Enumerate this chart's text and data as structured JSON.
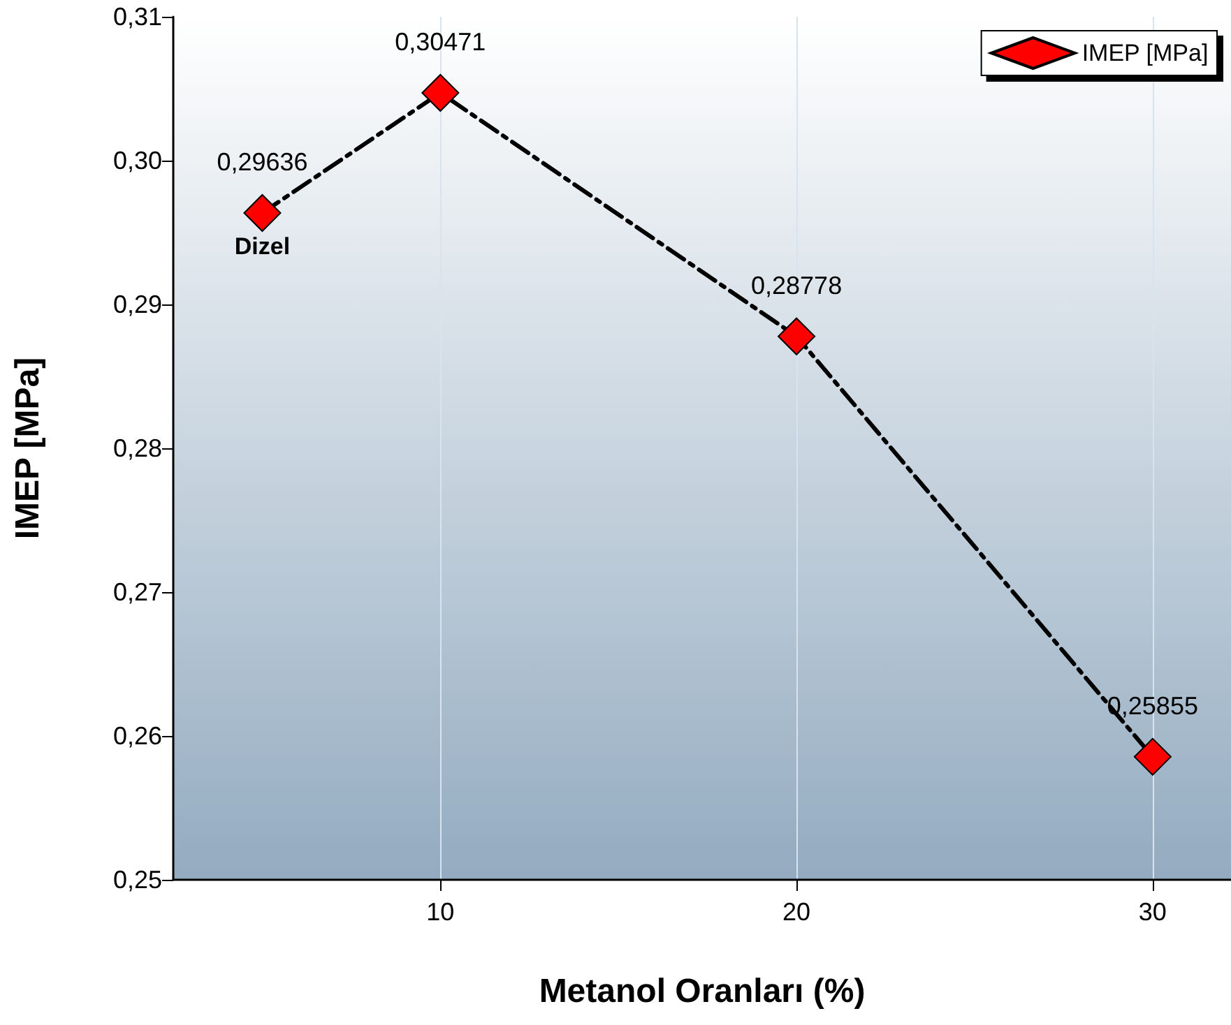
{
  "chart_data": {
    "type": "line",
    "xlabel": "Metanol Oranları (%)",
    "ylabel": "IMEP [MPa]",
    "x": [
      5,
      10,
      20,
      30
    ],
    "series": [
      {
        "name": "IMEP [MPa]",
        "color": "#ff0000",
        "values": [
          0.29636,
          0.30471,
          0.28778,
          0.25855
        ],
        "value_labels": [
          "0,29636",
          "0,30471",
          "0,28778",
          "0,25855"
        ]
      }
    ],
    "xlim": [
      2.5,
      32.2
    ],
    "xticks": [
      10,
      20,
      30
    ],
    "ylim": [
      0.25,
      0.31
    ],
    "yticks": [
      {
        "value": 0.25,
        "label": "0,25"
      },
      {
        "value": 0.26,
        "label": "0,26"
      },
      {
        "value": 0.27,
        "label": "0,27"
      },
      {
        "value": 0.28,
        "label": "0,28"
      },
      {
        "value": 0.29,
        "label": "0,29"
      },
      {
        "value": 0.3,
        "label": "0,30"
      },
      {
        "value": 0.31,
        "label": "0,31"
      }
    ],
    "annotations": [
      {
        "text": "Dizel",
        "x": 5,
        "y": 0.29636
      }
    ],
    "grid": "x",
    "legend": "top right",
    "marker": "diamond",
    "line_style": "dashed"
  }
}
